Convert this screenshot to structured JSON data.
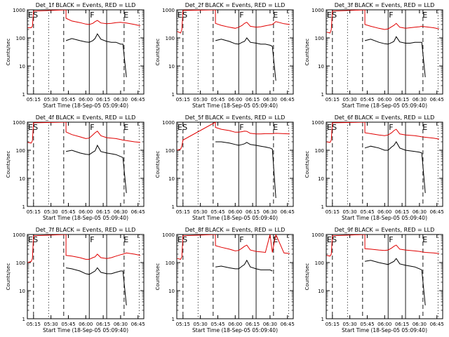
{
  "colors": {
    "events": "#000000",
    "lld": "#e00000",
    "axes": "#000000",
    "background": "#ffffff"
  },
  "shared": {
    "xlabel": "Start Time (18-Sep-05 05:09:40)",
    "ylabel": "Counts/sec",
    "x_ticks": [
      "05:15",
      "05:30",
      "05:45",
      "06:00",
      "06:15",
      "06:30",
      "06:45"
    ],
    "y_ticks": [
      "1",
      "10",
      "100",
      "1000"
    ],
    "y_scale": "log",
    "ylim": [
      1,
      1000
    ],
    "xlim": [
      "05:09:40",
      "06:50"
    ]
  },
  "chart_data": [
    {
      "type": "line",
      "title": "Det_1f BLACK = Events, RED = LLD",
      "markers": [
        "E",
        "S",
        "F",
        "E"
      ],
      "series": [
        {
          "name": "BLACK = Events",
          "x": [
            "05:10",
            "05:13",
            "05:14",
            "05:15",
            "05:43",
            "05:43",
            "05:48",
            "05:55",
            "06:00",
            "06:03",
            "06:06",
            "06:08",
            "06:10",
            "06:13",
            "06:18",
            "06:22",
            "06:26",
            "06:30",
            "06:32",
            "06:35",
            "06:42",
            "06:47"
          ],
          "y": [
            null,
            null,
            null,
            null,
            null,
            80,
            95,
            80,
            72,
            70,
            80,
            95,
            140,
            90,
            75,
            70,
            70,
            60,
            60,
            4,
            null,
            null
          ]
        },
        {
          "name": "RED = LLD",
          "x": [
            "05:10",
            "05:13",
            "05:14",
            "05:15",
            "05:43",
            "05:43",
            "05:48",
            "05:55",
            "06:00",
            "06:03",
            "06:06",
            "06:08",
            "06:10",
            "06:13",
            "06:18",
            "06:22",
            "06:26",
            "06:30",
            "06:32",
            "06:35",
            "06:42",
            "06:47"
          ],
          "y": [
            230,
            230,
            260,
            900,
            1000,
            500,
            400,
            350,
            310,
            300,
            330,
            380,
            420,
            340,
            320,
            330,
            350,
            360,
            350,
            340,
            300,
            270
          ]
        }
      ]
    },
    {
      "type": "line",
      "title": "Det_2f BLACK = Events, RED = LLD",
      "markers": [
        "E",
        "S",
        "F",
        "E"
      ],
      "series": [
        {
          "name": "BLACK = Events",
          "x": [
            "05:10",
            "05:13",
            "05:14",
            "05:15",
            "05:43",
            "05:43",
            "05:48",
            "05:55",
            "06:00",
            "06:03",
            "06:06",
            "06:08",
            "06:10",
            "06:13",
            "06:18",
            "06:22",
            "06:26",
            "06:30",
            "06:32",
            "06:35",
            "06:42",
            "06:47"
          ],
          "y": [
            null,
            null,
            null,
            null,
            null,
            80,
            90,
            75,
            62,
            60,
            70,
            75,
            100,
            70,
            65,
            60,
            60,
            55,
            50,
            3,
            null,
            null
          ]
        },
        {
          "name": "RED = LLD",
          "x": [
            "05:10",
            "05:13",
            "05:14",
            "05:15",
            "05:43",
            "05:43",
            "05:48",
            "05:55",
            "06:00",
            "06:03",
            "06:06",
            "06:08",
            "06:10",
            "06:13",
            "06:18",
            "06:22",
            "06:26",
            "06:30",
            "06:32",
            "06:35",
            "06:42",
            "06:47"
          ],
          "y": [
            170,
            150,
            200,
            950,
            1000,
            330,
            280,
            240,
            220,
            240,
            280,
            330,
            360,
            260,
            240,
            250,
            270,
            290,
            300,
            380,
            320,
            300
          ]
        }
      ]
    },
    {
      "type": "line",
      "title": "Det_3f BLACK = Events, RED = LLD",
      "markers": [
        "E",
        "S",
        "F",
        "E"
      ],
      "series": [
        {
          "name": "BLACK = Events",
          "x": [
            "05:10",
            "05:13",
            "05:14",
            "05:15",
            "05:43",
            "05:43",
            "05:48",
            "05:55",
            "06:00",
            "06:03",
            "06:06",
            "06:08",
            "06:10",
            "06:13",
            "06:18",
            "06:22",
            "06:26",
            "06:30",
            "06:32",
            "06:35",
            "06:42",
            "06:47"
          ],
          "y": [
            null,
            null,
            null,
            null,
            null,
            80,
            90,
            70,
            62,
            60,
            68,
            75,
            110,
            72,
            65,
            65,
            70,
            70,
            70,
            4,
            null,
            null
          ]
        },
        {
          "name": "RED = LLD",
          "x": [
            "05:10",
            "05:13",
            "05:14",
            "05:15",
            "05:43",
            "05:43",
            "05:48",
            "05:55",
            "06:00",
            "06:03",
            "06:06",
            "06:08",
            "06:10",
            "06:13",
            "06:18",
            "06:22",
            "06:26",
            "06:30",
            "06:32",
            "06:35",
            "06:42",
            "06:47"
          ],
          "y": [
            160,
            150,
            200,
            900,
            1000,
            300,
            260,
            220,
            200,
            210,
            250,
            280,
            330,
            240,
            220,
            230,
            240,
            250,
            260,
            250,
            230,
            210
          ]
        }
      ]
    },
    {
      "type": "line",
      "title": "Det_4f BLACK = Events, RED = LLD",
      "markers": [
        "E",
        "S",
        "F",
        "E"
      ],
      "series": [
        {
          "name": "BLACK = Events",
          "x": [
            "05:10",
            "05:13",
            "05:14",
            "05:15",
            "05:43",
            "05:43",
            "05:48",
            "05:55",
            "06:00",
            "06:03",
            "06:06",
            "06:08",
            "06:10",
            "06:13",
            "06:18",
            "06:22",
            "06:26",
            "06:30",
            "06:32",
            "06:35",
            "06:42",
            "06:47"
          ],
          "y": [
            null,
            null,
            null,
            null,
            null,
            90,
            100,
            80,
            72,
            70,
            85,
            95,
            150,
            90,
            80,
            75,
            70,
            60,
            55,
            3,
            null,
            null
          ]
        },
        {
          "name": "RED = LLD",
          "x": [
            "05:10",
            "05:13",
            "05:14",
            "05:15",
            "05:43",
            "05:43",
            "05:48",
            "05:55",
            "06:00",
            "06:03",
            "06:06",
            "06:08",
            "06:10",
            "06:13",
            "06:18",
            "06:22",
            "06:26",
            "06:30",
            "06:32",
            "06:35",
            "06:42",
            "06:47"
          ],
          "y": [
            190,
            180,
            220,
            950,
            1000,
            450,
            360,
            300,
            260,
            270,
            350,
            420,
            480,
            330,
            280,
            270,
            260,
            240,
            230,
            220,
            200,
            190
          ]
        }
      ]
    },
    {
      "type": "line",
      "title": "Det_5f BLACK = Events, RED = LLD",
      "markers": [
        "E",
        "S",
        "F",
        "E"
      ],
      "series": [
        {
          "name": "BLACK = Events",
          "x": [
            "05:10",
            "05:13",
            "05:14",
            "05:15",
            "05:43",
            "05:43",
            "05:48",
            "05:55",
            "06:00",
            "06:03",
            "06:06",
            "06:08",
            "06:10",
            "06:13",
            "06:18",
            "06:22",
            "06:26",
            "06:30",
            "06:32",
            "06:35",
            "06:42",
            "06:47"
          ],
          "y": [
            null,
            null,
            null,
            null,
            null,
            200,
            200,
            180,
            160,
            150,
            160,
            170,
            190,
            160,
            150,
            140,
            130,
            120,
            110,
            2,
            null,
            null
          ]
        },
        {
          "name": "RED = LLD",
          "x": [
            "05:10",
            "05:13",
            "05:14",
            "05:15",
            "05:43",
            "05:43",
            "05:48",
            "05:55",
            "06:00",
            "06:03",
            "06:06",
            "06:08",
            "06:10",
            "06:13",
            "06:18",
            "06:22",
            "06:26",
            "06:30",
            "06:32",
            "06:35",
            "06:42",
            "06:47"
          ],
          "y": [
            100,
            110,
            140,
            230,
            1000,
            650,
            560,
            500,
            440,
            440,
            460,
            480,
            470,
            400,
            380,
            380,
            390,
            390,
            390,
            400,
            390,
            380
          ]
        }
      ]
    },
    {
      "type": "line",
      "title": "Det_6f BLACK = Events, RED = LLD",
      "markers": [
        "E",
        "S",
        "F",
        "E"
      ],
      "series": [
        {
          "name": "BLACK = Events",
          "x": [
            "05:10",
            "05:13",
            "05:14",
            "05:15",
            "05:43",
            "05:43",
            "05:48",
            "05:55",
            "06:00",
            "06:03",
            "06:06",
            "06:08",
            "06:10",
            "06:13",
            "06:18",
            "06:22",
            "06:26",
            "06:30",
            "06:32",
            "06:35",
            "06:42",
            "06:47"
          ],
          "y": [
            null,
            null,
            null,
            null,
            null,
            120,
            140,
            120,
            100,
            100,
            130,
            150,
            200,
            120,
            100,
            95,
            90,
            85,
            80,
            3,
            null,
            null
          ]
        },
        {
          "name": "RED = LLD",
          "x": [
            "05:10",
            "05:13",
            "05:14",
            "05:15",
            "05:43",
            "05:43",
            "05:48",
            "05:55",
            "06:00",
            "06:03",
            "06:06",
            "06:08",
            "06:10",
            "06:13",
            "06:18",
            "06:22",
            "06:26",
            "06:30",
            "06:32",
            "06:35",
            "06:42",
            "06:47"
          ],
          "y": [
            200,
            190,
            230,
            950,
            1000,
            420,
            390,
            350,
            330,
            350,
            420,
            500,
            560,
            380,
            350,
            340,
            330,
            310,
            300,
            290,
            270,
            250
          ]
        }
      ]
    },
    {
      "type": "line",
      "title": "Det_7f BLACK = Events, RED = LLD",
      "markers": [
        "E",
        "S",
        "F",
        "E"
      ],
      "series": [
        {
          "name": "BLACK = Events",
          "x": [
            "05:10",
            "05:13",
            "05:14",
            "05:15",
            "05:43",
            "05:43",
            "05:48",
            "05:55",
            "06:00",
            "06:03",
            "06:06",
            "06:08",
            "06:10",
            "06:13",
            "06:18",
            "06:22",
            "06:26",
            "06:30",
            "06:32",
            "06:35",
            "06:42",
            "06:47"
          ],
          "y": [
            null,
            null,
            null,
            null,
            null,
            65,
            60,
            50,
            40,
            38,
            45,
            50,
            65,
            45,
            40,
            40,
            45,
            50,
            50,
            3,
            null,
            null
          ]
        },
        {
          "name": "RED = LLD",
          "x": [
            "05:10",
            "05:13",
            "05:14",
            "05:15",
            "05:43",
            "05:43",
            "05:48",
            "05:55",
            "06:00",
            "06:03",
            "06:06",
            "06:08",
            "06:10",
            "06:13",
            "06:18",
            "06:22",
            "06:26",
            "06:30",
            "06:32",
            "06:35",
            "06:42",
            "06:47"
          ],
          "y": [
            100,
            110,
            140,
            900,
            1000,
            180,
            170,
            150,
            130,
            130,
            150,
            160,
            200,
            150,
            140,
            150,
            170,
            190,
            200,
            220,
            200,
            180
          ]
        }
      ]
    },
    {
      "type": "line",
      "title": "Det_8f BLACK = Events, RED = LLD",
      "markers": [
        "E",
        "S",
        "F",
        "E"
      ],
      "series": [
        {
          "name": "BLACK = Events",
          "x": [
            "05:10",
            "05:13",
            "05:14",
            "05:15",
            "05:43",
            "05:43",
            "05:48",
            "05:55",
            "06:00",
            "06:03",
            "06:06",
            "06:08",
            "06:10",
            "06:13",
            "06:18",
            "06:22",
            "06:26",
            "06:30",
            "06:32",
            "06:35",
            "06:42",
            "06:47"
          ],
          "y": [
            null,
            null,
            null,
            null,
            null,
            70,
            75,
            65,
            60,
            60,
            75,
            85,
            120,
            70,
            60,
            55,
            55,
            55,
            50,
            null,
            null,
            null
          ]
        },
        {
          "name": "RED = LLD",
          "x": [
            "05:10",
            "05:13",
            "05:14",
            "05:15",
            "05:43",
            "05:43",
            "05:48",
            "05:55",
            "06:00",
            "06:03",
            "06:06",
            "06:08",
            "06:10",
            "06:13",
            "06:18",
            "06:22",
            "06:26",
            "06:30",
            "06:32",
            "06:35",
            "06:42",
            "06:47"
          ],
          "y": [
            140,
            130,
            160,
            900,
            1000,
            400,
            350,
            300,
            260,
            270,
            330,
            380,
            420,
            280,
            250,
            240,
            230,
            1000,
            230,
            1000,
            220,
            210
          ]
        }
      ]
    },
    {
      "type": "line",
      "title": "Det_9f BLACK = Events, RED = LLD",
      "markers": [
        "E",
        "S",
        "F",
        "E"
      ],
      "series": [
        {
          "name": "BLACK = Events",
          "x": [
            "05:10",
            "05:13",
            "05:14",
            "05:15",
            "05:43",
            "05:43",
            "05:48",
            "05:55",
            "06:00",
            "06:03",
            "06:06",
            "06:08",
            "06:10",
            "06:13",
            "06:18",
            "06:22",
            "06:26",
            "06:30",
            "06:32",
            "06:35",
            "06:42",
            "06:47"
          ],
          "y": [
            null,
            null,
            null,
            null,
            null,
            110,
            120,
            100,
            90,
            85,
            100,
            110,
            140,
            90,
            80,
            75,
            70,
            60,
            55,
            3,
            null,
            null
          ]
        },
        {
          "name": "RED = LLD",
          "x": [
            "05:10",
            "05:13",
            "05:14",
            "05:15",
            "05:43",
            "05:43",
            "05:48",
            "05:55",
            "06:00",
            "06:03",
            "06:06",
            "06:08",
            "06:10",
            "06:13",
            "06:18",
            "06:22",
            "06:26",
            "06:30",
            "06:32",
            "06:35",
            "06:42",
            "06:47"
          ],
          "y": [
            180,
            170,
            200,
            900,
            1000,
            310,
            300,
            280,
            270,
            280,
            330,
            380,
            420,
            300,
            280,
            270,
            260,
            250,
            240,
            230,
            220,
            210
          ]
        }
      ]
    }
  ]
}
